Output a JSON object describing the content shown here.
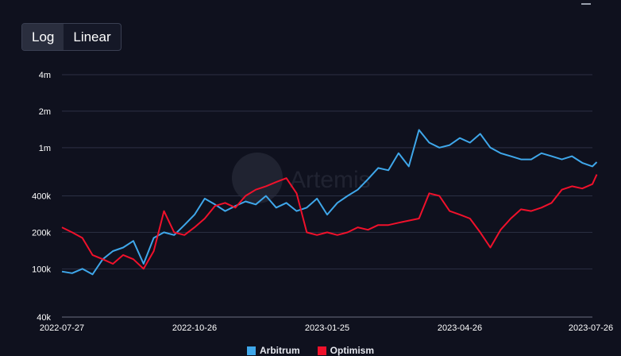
{
  "toolbar": {
    "log_label": "Log",
    "linear_label": "Linear",
    "active": "log"
  },
  "watermark": "Artemis",
  "colors": {
    "background": "#0f111e",
    "grid": "#2c3044",
    "arbitrum": "#3fa7ea",
    "optimism": "#f0112b"
  },
  "icons": {
    "menu": "hamburger-icon",
    "watermark": "artemis-logo-icon"
  },
  "chart_data": {
    "type": "line",
    "scale": "log",
    "ylim": [
      40000,
      4000000
    ],
    "y_ticks": [
      {
        "value": 4000000,
        "label": "4m"
      },
      {
        "value": 2000000,
        "label": "2m"
      },
      {
        "value": 1000000,
        "label": "1m"
      },
      {
        "value": 400000,
        "label": "400k"
      },
      {
        "value": 200000,
        "label": "200k"
      },
      {
        "value": 100000,
        "label": "100k"
      },
      {
        "value": 40000,
        "label": "40k"
      }
    ],
    "x_ticks": [
      "2022-07-27",
      "2022-10-26",
      "2023-01-25",
      "2023-04-26",
      "2023-07-26"
    ],
    "x": [
      "2022-07-27",
      "2022-08-03",
      "2022-08-10",
      "2022-08-17",
      "2022-08-24",
      "2022-08-31",
      "2022-09-07",
      "2022-09-14",
      "2022-09-21",
      "2022-09-28",
      "2022-10-05",
      "2022-10-12",
      "2022-10-19",
      "2022-10-26",
      "2022-11-02",
      "2022-11-09",
      "2022-11-16",
      "2022-11-23",
      "2022-11-30",
      "2022-12-07",
      "2022-12-14",
      "2022-12-21",
      "2022-12-28",
      "2023-01-04",
      "2023-01-11",
      "2023-01-18",
      "2023-01-25",
      "2023-02-01",
      "2023-02-08",
      "2023-02-15",
      "2023-02-22",
      "2023-03-01",
      "2023-03-08",
      "2023-03-15",
      "2023-03-22",
      "2023-03-29",
      "2023-04-05",
      "2023-04-12",
      "2023-04-19",
      "2023-04-26",
      "2023-05-03",
      "2023-05-10",
      "2023-05-17",
      "2023-05-24",
      "2023-05-31",
      "2023-06-07",
      "2023-06-14",
      "2023-06-21",
      "2023-06-28",
      "2023-07-05",
      "2023-07-12",
      "2023-07-19",
      "2023-07-26",
      "2023-07-29"
    ],
    "series": [
      {
        "name": "Arbitrum",
        "color": "#3fa7ea",
        "values": [
          95000,
          92000,
          100000,
          90000,
          120000,
          140000,
          150000,
          170000,
          110000,
          180000,
          200000,
          190000,
          230000,
          280000,
          380000,
          340000,
          300000,
          330000,
          360000,
          340000,
          400000,
          320000,
          350000,
          300000,
          320000,
          380000,
          280000,
          350000,
          400000,
          450000,
          550000,
          680000,
          650000,
          900000,
          700000,
          1400000,
          1100000,
          1000000,
          1050000,
          1200000,
          1100000,
          1300000,
          1000000,
          900000,
          850000,
          800000,
          800000,
          900000,
          850000,
          800000,
          850000,
          750000,
          700000,
          760000
        ]
      },
      {
        "name": "Optimism",
        "color": "#f0112b",
        "values": [
          220000,
          200000,
          180000,
          130000,
          120000,
          110000,
          130000,
          120000,
          100000,
          140000,
          300000,
          200000,
          190000,
          220000,
          260000,
          330000,
          350000,
          320000,
          400000,
          450000,
          480000,
          520000,
          560000,
          420000,
          200000,
          190000,
          200000,
          190000,
          200000,
          220000,
          210000,
          230000,
          230000,
          240000,
          250000,
          260000,
          420000,
          400000,
          300000,
          280000,
          260000,
          200000,
          150000,
          210000,
          260000,
          310000,
          300000,
          320000,
          350000,
          450000,
          480000,
          460000,
          500000,
          600000
        ]
      }
    ],
    "legend_position": "bottom"
  }
}
